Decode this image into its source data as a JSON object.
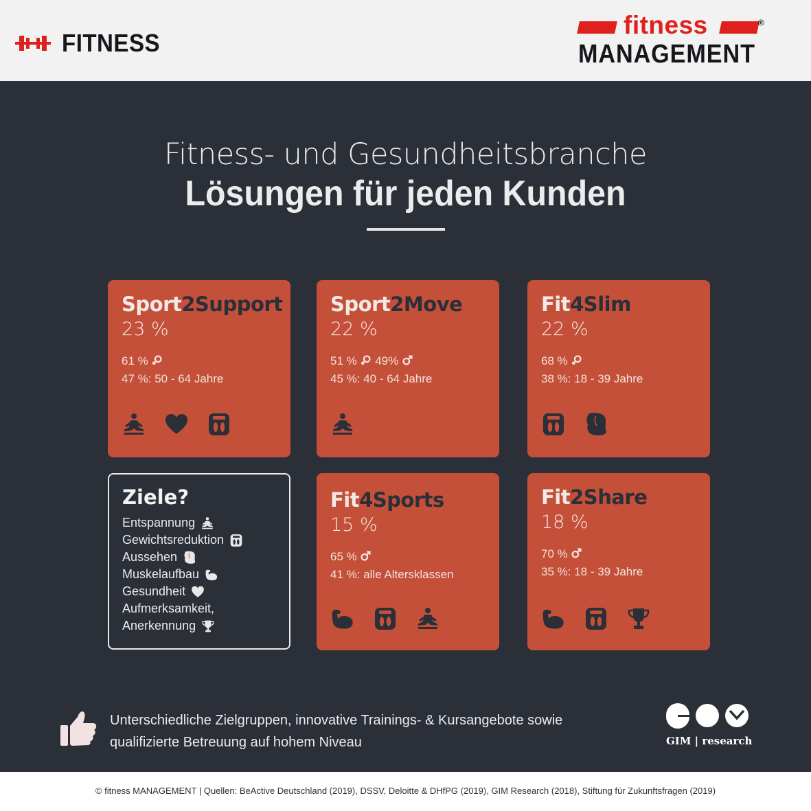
{
  "header": {
    "left_logo_text": "FITNESS",
    "left_logo_icon": "dumbbell-icon",
    "right_logo_line1": "fitness",
    "right_logo_reg": "®",
    "right_logo_line2": "MANAGEMENT"
  },
  "title": {
    "line1": "Fitness- und Gesundheitsbranche",
    "line2": "Lösungen für jeden Kunden"
  },
  "colors": {
    "accent": "#c5503a",
    "background": "#2b2f38",
    "brand_red": "#e0201c"
  },
  "cards": [
    {
      "name_a": "Sport",
      "name_b": "2Support",
      "percent": "23 %",
      "gender": "61 %",
      "gender_icon": "female-icon",
      "age": "47 %: 50 - 64 Jahre",
      "icons": [
        "meditation-icon",
        "heart-icon",
        "scale-icon"
      ]
    },
    {
      "name_a": "Sport",
      "name_b": "2Move",
      "percent": "22 %",
      "gender": "51 %",
      "gender2": "49%",
      "age": "45 %: 40 - 64 Jahre",
      "icons": [
        "meditation-icon"
      ]
    },
    {
      "name_a": "Fit",
      "name_b": "4Slim",
      "percent": "22 %",
      "gender": "68 %",
      "gender_icon": "female-icon",
      "age": "38 %: 18 - 39 Jahre",
      "icons": [
        "scale-icon",
        "body-shape-icon"
      ]
    },
    {
      "name_a": "Fit",
      "name_b": "4Sports",
      "percent": "15 %",
      "gender": "65 %",
      "gender_icon": "male-icon",
      "age": "41 %: alle Altersklassen",
      "icons": [
        "biceps-icon",
        "scale-icon",
        "meditation-icon"
      ]
    },
    {
      "name_a": "Fit",
      "name_b": "2Share",
      "percent": "18 %",
      "gender": "70 %",
      "gender_icon": "male-icon",
      "age": "35 %: 18 - 39 Jahre",
      "icons": [
        "biceps-icon",
        "scale-icon",
        "trophy-icon"
      ]
    }
  ],
  "ziele": {
    "title": "Ziele?",
    "items": [
      {
        "label": "Entspannung",
        "icon": "meditation-icon"
      },
      {
        "label": "Gewichtsreduktion",
        "icon": "scale-icon"
      },
      {
        "label": "Aussehen",
        "icon": "body-shape-icon"
      },
      {
        "label": "Muskelaufbau",
        "icon": "biceps-icon"
      },
      {
        "label": "Gesundheit",
        "icon": "heart-icon"
      },
      {
        "label": "Aufmerksamkeit,",
        "icon": ""
      },
      {
        "label": "Anerkennung",
        "icon": "trophy-icon"
      }
    ]
  },
  "bottom": {
    "line1": "Unterschiedliche Zielgruppen, innovative Trainings- & Kursangebote sowie",
    "line2": "qualifizierte Betreuung auf hohem Niveau",
    "gim_label": "GIM | research"
  },
  "footer": {
    "text": "© fitness MANAGEMENT  |  Quellen: BeActive Deutschland (2019), DSSV, Deloitte & DHfPG (2019), GIM Research (2018), Stiftung für Zukunftsfragen (2019)"
  }
}
